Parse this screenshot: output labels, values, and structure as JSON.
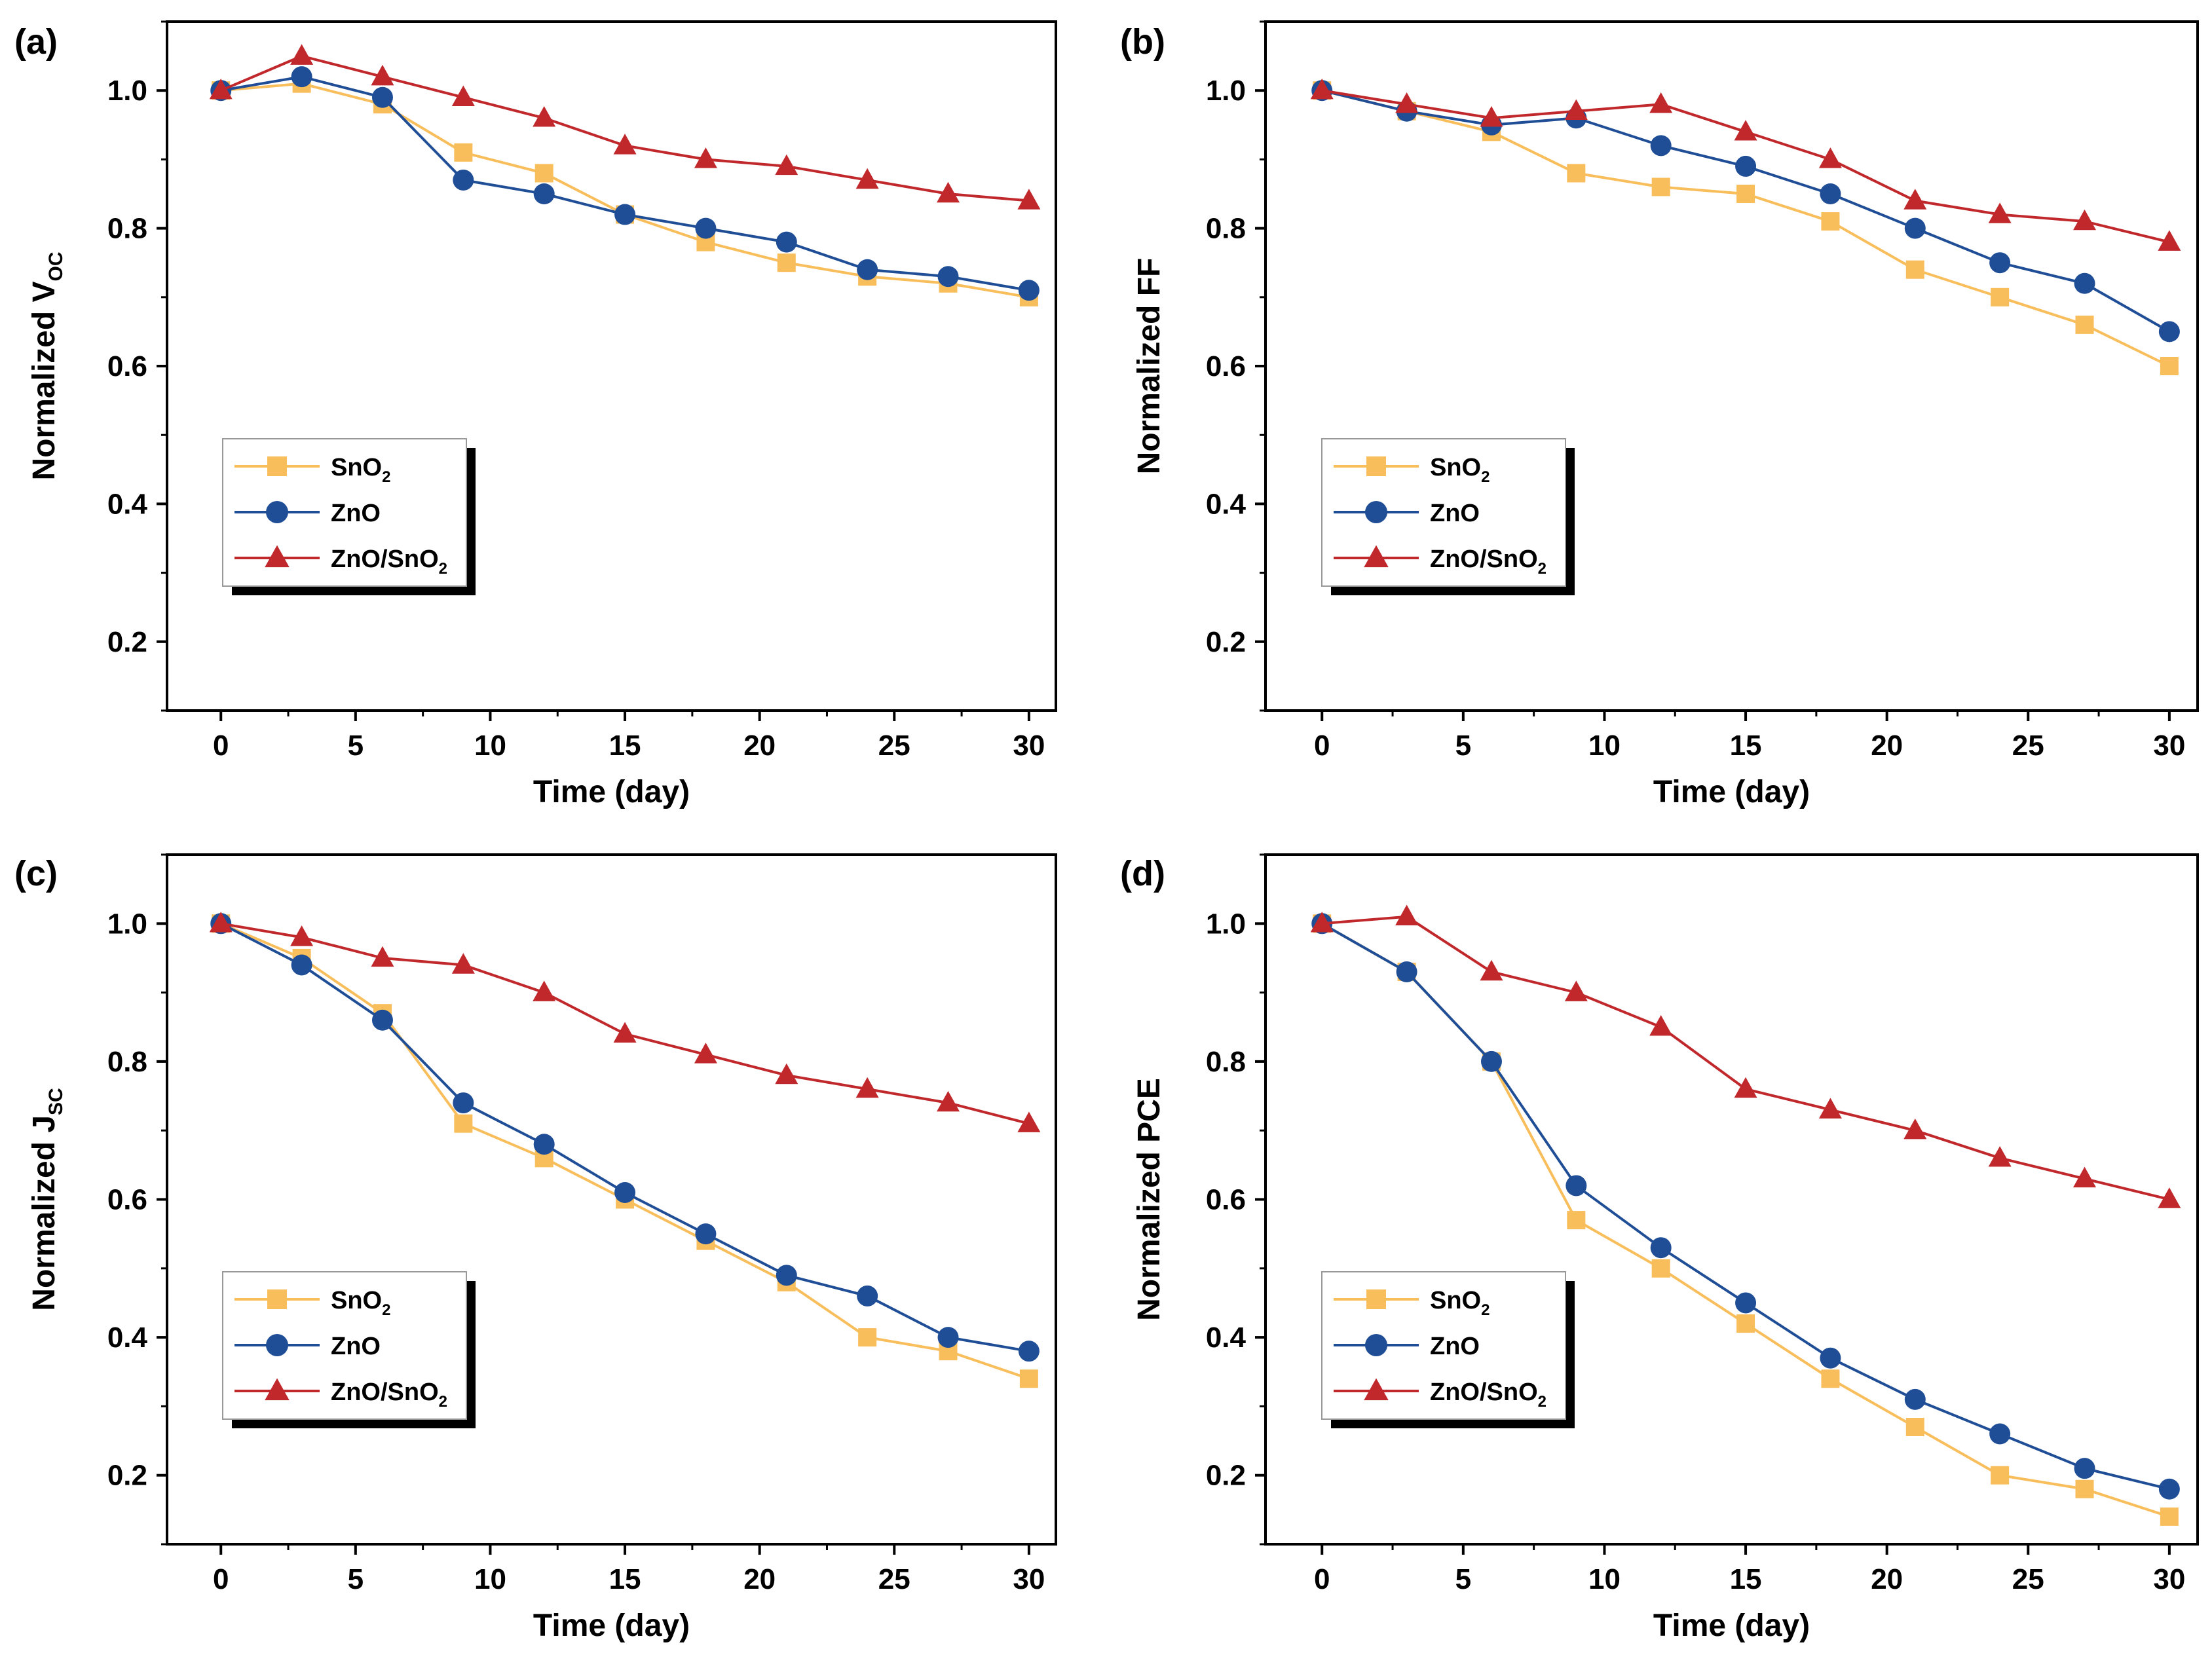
{
  "colors": {
    "SnO2": "#F9BE5C",
    "ZnO": "#1F4E96",
    "ZnO/SnO2": "#C0282C"
  },
  "chart_data": [
    {
      "type": "line",
      "panel": "(a)",
      "xlabel": "Time (day)",
      "ylabel": {
        "main": "Normalized V",
        "sub": "OC"
      },
      "xlim": [
        -2,
        31
      ],
      "ylim": [
        0.1,
        1.1
      ],
      "xticks": [
        "0",
        "5",
        "10",
        "15",
        "20",
        "25",
        "30"
      ],
      "yticks": [
        "0.2",
        "0.4",
        "0.6",
        "0.8",
        "1.0"
      ],
      "x": [
        0,
        3,
        6,
        9,
        12,
        15,
        18,
        21,
        24,
        27,
        30
      ],
      "series": [
        {
          "name": "SnO2",
          "label": "SnO",
          "label_sub": "2",
          "marker": "square",
          "values": [
            1.0,
            1.01,
            0.98,
            0.91,
            0.88,
            0.82,
            0.78,
            0.75,
            0.73,
            0.72,
            0.7
          ]
        },
        {
          "name": "ZnO",
          "label": "ZnO",
          "label_sub": "",
          "marker": "circle",
          "values": [
            1.0,
            1.02,
            0.99,
            0.87,
            0.85,
            0.82,
            0.8,
            0.78,
            0.74,
            0.73,
            0.71
          ]
        },
        {
          "name": "ZnO/SnO2",
          "label": "ZnO/SnO",
          "label_sub": "2",
          "marker": "triangle",
          "values": [
            1.0,
            1.05,
            1.02,
            0.99,
            0.96,
            0.92,
            0.9,
            0.89,
            0.87,
            0.85,
            0.84
          ]
        }
      ],
      "legend": "center-left"
    },
    {
      "type": "line",
      "panel": "(b)",
      "xlabel": "Time (day)",
      "ylabel": {
        "main": "Normalized FF",
        "sub": ""
      },
      "xlim": [
        -2,
        31
      ],
      "ylim": [
        0.1,
        1.1
      ],
      "xticks": [
        "0",
        "5",
        "10",
        "15",
        "20",
        "25",
        "30"
      ],
      "yticks": [
        "0.2",
        "0.4",
        "0.6",
        "0.8",
        "1.0"
      ],
      "x": [
        0,
        3,
        6,
        9,
        12,
        15,
        18,
        21,
        24,
        27,
        30
      ],
      "series": [
        {
          "name": "SnO2",
          "label": "SnO",
          "label_sub": "2",
          "marker": "square",
          "values": [
            1.0,
            0.97,
            0.94,
            0.88,
            0.86,
            0.85,
            0.81,
            0.74,
            0.7,
            0.66,
            0.6
          ]
        },
        {
          "name": "ZnO",
          "label": "ZnO",
          "label_sub": "",
          "marker": "circle",
          "values": [
            1.0,
            0.97,
            0.95,
            0.96,
            0.92,
            0.89,
            0.85,
            0.8,
            0.75,
            0.72,
            0.65
          ]
        },
        {
          "name": "ZnO/SnO2",
          "label": "ZnO/SnO",
          "label_sub": "2",
          "marker": "triangle",
          "values": [
            1.0,
            0.98,
            0.96,
            0.97,
            0.98,
            0.94,
            0.9,
            0.84,
            0.82,
            0.81,
            0.78
          ]
        }
      ],
      "legend": "center-left"
    },
    {
      "type": "line",
      "panel": "(c)",
      "xlabel": "Time (day)",
      "ylabel": {
        "main": "Normalized J",
        "sub": "SC"
      },
      "xlim": [
        -2,
        31
      ],
      "ylim": [
        0.1,
        1.1
      ],
      "xticks": [
        "0",
        "5",
        "10",
        "15",
        "20",
        "25",
        "30"
      ],
      "yticks": [
        "0.2",
        "0.4",
        "0.6",
        "0.8",
        "1.0"
      ],
      "x": [
        0,
        3,
        6,
        9,
        12,
        15,
        18,
        21,
        24,
        27,
        30
      ],
      "series": [
        {
          "name": "SnO2",
          "label": "SnO",
          "label_sub": "2",
          "marker": "square",
          "values": [
            1.0,
            0.95,
            0.87,
            0.71,
            0.66,
            0.6,
            0.54,
            0.48,
            0.4,
            0.38,
            0.34
          ]
        },
        {
          "name": "ZnO",
          "label": "ZnO",
          "label_sub": "",
          "marker": "circle",
          "values": [
            1.0,
            0.94,
            0.86,
            0.74,
            0.68,
            0.61,
            0.55,
            0.49,
            0.46,
            0.4,
            0.38
          ]
        },
        {
          "name": "ZnO/SnO2",
          "label": "ZnO/SnO",
          "label_sub": "2",
          "marker": "triangle",
          "values": [
            1.0,
            0.98,
            0.95,
            0.94,
            0.9,
            0.84,
            0.81,
            0.78,
            0.76,
            0.74,
            0.71
          ]
        }
      ],
      "legend": "bottom-left"
    },
    {
      "type": "line",
      "panel": "(d)",
      "xlabel": "Time (day)",
      "ylabel": {
        "main": "Normalized PCE",
        "sub": ""
      },
      "xlim": [
        -2,
        31
      ],
      "ylim": [
        0.1,
        1.1
      ],
      "xticks": [
        "0",
        "5",
        "10",
        "15",
        "20",
        "25",
        "30"
      ],
      "yticks": [
        "0.2",
        "0.4",
        "0.6",
        "0.8",
        "1.0"
      ],
      "x": [
        0,
        3,
        6,
        9,
        12,
        15,
        18,
        21,
        24,
        27,
        30
      ],
      "series": [
        {
          "name": "SnO2",
          "label": "SnO",
          "label_sub": "2",
          "marker": "square",
          "values": [
            1.0,
            0.93,
            0.8,
            0.57,
            0.5,
            0.42,
            0.34,
            0.27,
            0.2,
            0.18,
            0.14
          ]
        },
        {
          "name": "ZnO",
          "label": "ZnO",
          "label_sub": "",
          "marker": "circle",
          "values": [
            1.0,
            0.93,
            0.8,
            0.62,
            0.53,
            0.45,
            0.37,
            0.31,
            0.26,
            0.21,
            0.18
          ]
        },
        {
          "name": "ZnO/SnO2",
          "label": "ZnO/SnO",
          "label_sub": "2",
          "marker": "triangle",
          "values": [
            1.0,
            1.01,
            0.93,
            0.9,
            0.85,
            0.76,
            0.73,
            0.7,
            0.66,
            0.63,
            0.6
          ]
        }
      ],
      "legend": "bottom-left"
    }
  ]
}
